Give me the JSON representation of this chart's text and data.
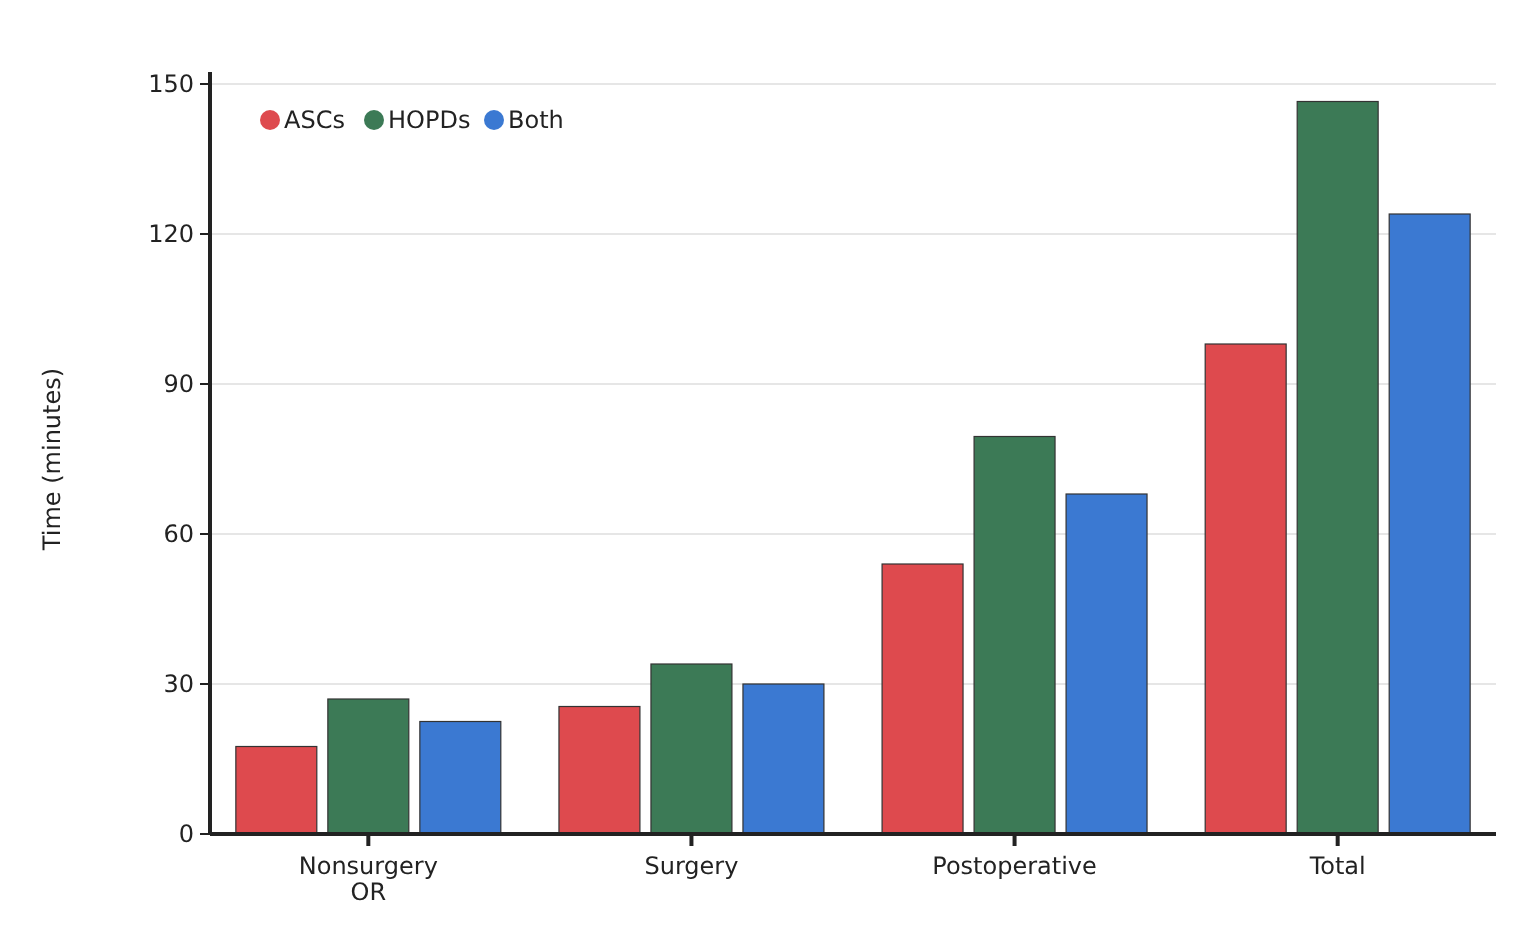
{
  "chart_data": {
    "type": "bar",
    "ylabel": "Time (minutes)",
    "categories": [
      "Nonsurgery OR",
      "Surgery",
      "Postoperative",
      "Total"
    ],
    "series": [
      {
        "name": "ASCs",
        "color": "#de4a4e",
        "values": [
          17.5,
          25.5,
          54,
          98
        ]
      },
      {
        "name": "HOPDs",
        "color": "#3c7a56",
        "values": [
          27,
          34,
          79.5,
          146.5
        ]
      },
      {
        "name": "Both",
        "color": "#3b79d2",
        "values": [
          22.5,
          30,
          68,
          124
        ]
      }
    ],
    "ylim": [
      0,
      150
    ],
    "yticks": [
      0,
      30,
      60,
      90,
      120,
      150
    ],
    "grid": "y",
    "legend": "top left"
  }
}
